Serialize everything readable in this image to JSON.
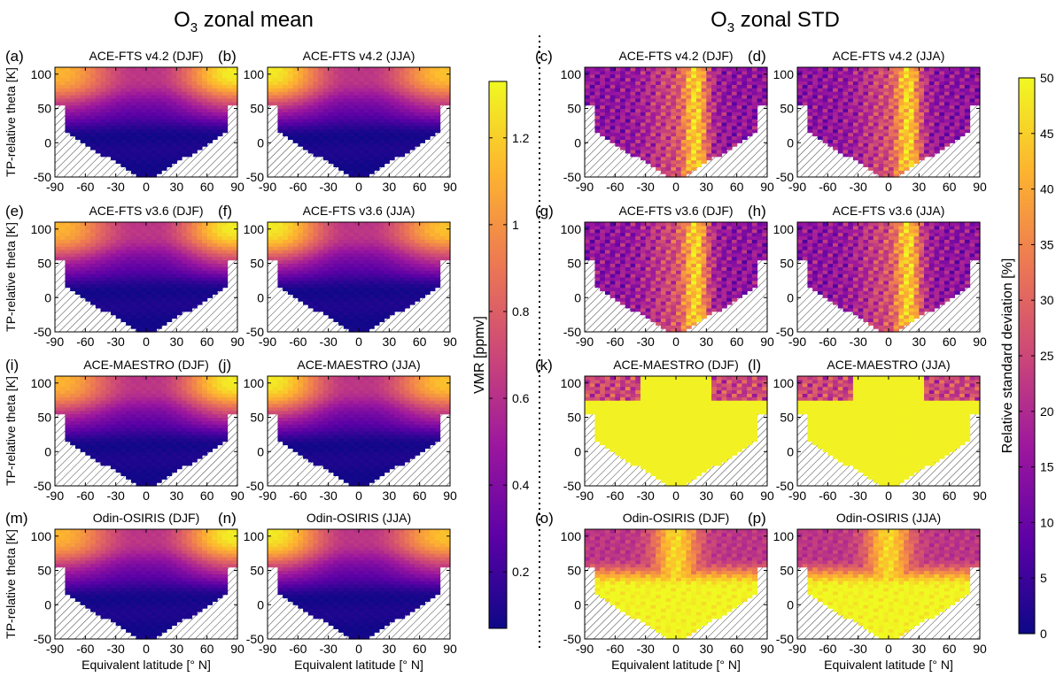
{
  "titles": {
    "mean_base": "O",
    "mean_sub": "3",
    "mean_rest": " zonal mean",
    "std_base": "O",
    "std_sub": "3",
    "std_rest": " zonal STD"
  },
  "axes": {
    "ylabel": "TP-relative theta [K]",
    "xlabel": "Equivalent latitude [° N]",
    "xticks": [
      "-90",
      "-60",
      "-30",
      "0",
      "30",
      "60",
      "90"
    ],
    "yticks": [
      "100",
      "50",
      "0",
      "-50"
    ]
  },
  "colorbars": {
    "mean": {
      "label": "VMR [ppmv]",
      "range": [
        0.07,
        1.33
      ],
      "ticks": [
        "1.2",
        "1",
        "0.8",
        "0.6",
        "0.4",
        "0.2"
      ]
    },
    "std": {
      "label": "Relative standard deviation [%]",
      "range": [
        0,
        50
      ],
      "ticks": [
        "50",
        "45",
        "40",
        "35",
        "30",
        "25",
        "20",
        "15",
        "10",
        "5",
        "0"
      ]
    },
    "colormap": [
      "#0d0887",
      "#5c01a6",
      "#9c179e",
      "#cc4778",
      "#ed7953",
      "#fdb42f",
      "#f0f921"
    ]
  },
  "panels": [
    {
      "tag": "(a)",
      "title": "ACE-FTS v4.2 (DJF)"
    },
    {
      "tag": "(b)",
      "title": "ACE-FTS v4.2 (JJA)"
    },
    {
      "tag": "(c)",
      "title": "ACE-FTS v4.2 (DJF)"
    },
    {
      "tag": "(d)",
      "title": "ACE-FTS v4.2 (JJA)"
    },
    {
      "tag": "(e)",
      "title": "ACE-FTS v3.6 (DJF)"
    },
    {
      "tag": "(f)",
      "title": "ACE-FTS v3.6 (JJA)"
    },
    {
      "tag": "(g)",
      "title": "ACE-FTS v3.6 (DJF)"
    },
    {
      "tag": "(h)",
      "title": "ACE-FTS v3.6 (JJA)"
    },
    {
      "tag": "(i)",
      "title": "ACE-MAESTRO (DJF)"
    },
    {
      "tag": "(j)",
      "title": "ACE-MAESTRO (JJA)"
    },
    {
      "tag": "(k)",
      "title": "ACE-MAESTRO (DJF)"
    },
    {
      "tag": "(l)",
      "title": "ACE-MAESTRO (JJA)"
    },
    {
      "tag": "(m)",
      "title": "Odin-OSIRIS (DJF)"
    },
    {
      "tag": "(n)",
      "title": "Odin-OSIRIS (JJA)"
    },
    {
      "tag": "(o)",
      "title": "Odin-OSIRIS (DJF)"
    },
    {
      "tag": "(p)",
      "title": "Odin-OSIRIS (JJA)"
    }
  ],
  "chart_data": {
    "type": "heatmap",
    "x_range": [
      -90,
      90
    ],
    "y_range": [
      -50,
      110
    ],
    "variables": [
      "O3 VMR [ppmv]",
      "O3 relative standard deviation [%]"
    ],
    "approx_values": {
      "mean_vmr_ppmv": {
        "polar_top_100K": 1.25,
        "midlatitude_top_100K": 0.8,
        "tropics_top_100K": 0.55,
        "near_tropopause_0K": 0.15,
        "below_tropopause": 0.1
      },
      "std_percent": {
        "ace_fts": {
          "tropics": 45,
          "extratropics": 20
        },
        "ace_maestro": {
          "most_domain": 50,
          "polar_top": 25
        },
        "odin_osiris": {
          "tropics_lower": 50,
          "extratropics_upper": 25
        }
      }
    }
  }
}
